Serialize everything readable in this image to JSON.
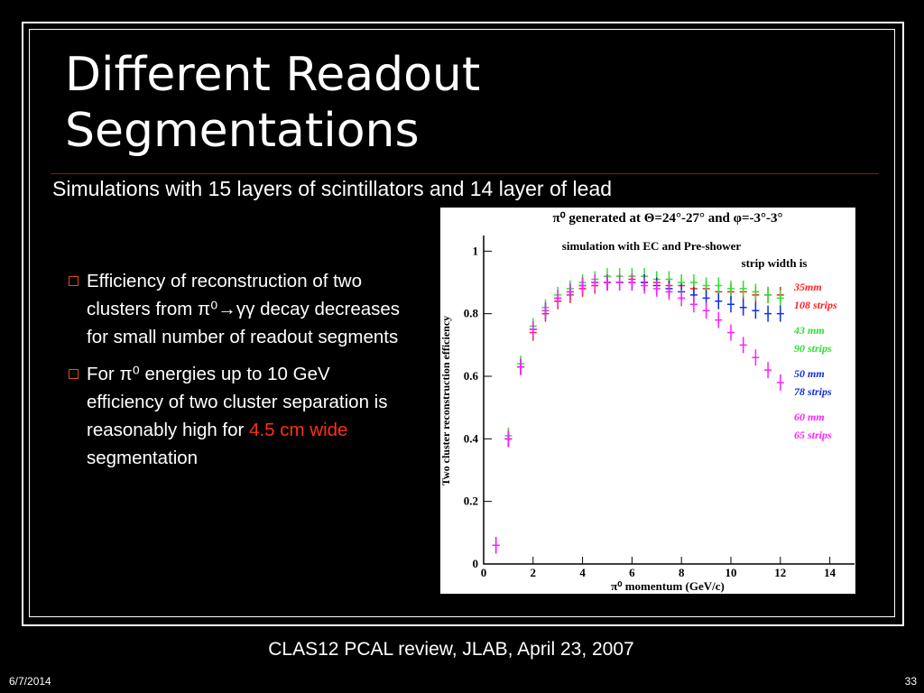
{
  "slide": {
    "title": [
      "Different Readout",
      "Segmentations"
    ],
    "subtitle": "Simulations with 15 layers of scintillators and 14 layer of lead",
    "bullets": [
      [
        "Efficiency of reconstruction of two clusters from π⁰→γγ decay decreases for small number of readout segments"
      ],
      [
        "For  π⁰ energies up to 10 GeV efficiency of two cluster separation is reasonably high for ",
        "4.5 cm wide",
        " segmentation"
      ]
    ],
    "footer": "CLAS12  PCAL review, JLAB, April 23, 2007",
    "date": "6/7/2014",
    "page": "33"
  },
  "chart_data": {
    "type": "scatter",
    "title": "π⁰ generated at Θ=24°-27° and φ=-3°-3°",
    "annotations": [
      "simulation with EC and Pre-shower",
      "strip width is"
    ],
    "xlabel": "π⁰ momentum (GeV/c)",
    "ylabel": "Two cluster reconstruction efficiency",
    "x": [
      0.5,
      1,
      1.5,
      2,
      2.5,
      3,
      3.5,
      4,
      4.5,
      5,
      5.5,
      6,
      6.5,
      7,
      7.5,
      8,
      8.5,
      9,
      9.5,
      10,
      10.5,
      11,
      11.5,
      12
    ],
    "series": [
      {
        "name": "35mm",
        "strips": "108 strips",
        "color": "#ff2020",
        "values": [
          0.06,
          0.4,
          0.63,
          0.74,
          0.8,
          0.84,
          0.86,
          0.88,
          0.89,
          0.9,
          0.9,
          0.91,
          0.9,
          0.9,
          0.89,
          0.89,
          0.88,
          0.88,
          0.87,
          0.87,
          0.87,
          0.86,
          0.86,
          0.86
        ]
      },
      {
        "name": "43 mm",
        "strips": "90 strips",
        "color": "#30e030",
        "values": [
          0.06,
          0.41,
          0.64,
          0.76,
          0.82,
          0.86,
          0.88,
          0.9,
          0.91,
          0.92,
          0.92,
          0.92,
          0.92,
          0.91,
          0.91,
          0.9,
          0.9,
          0.89,
          0.89,
          0.88,
          0.88,
          0.87,
          0.86,
          0.85
        ]
      },
      {
        "name": "50 mm",
        "strips": "78 strips",
        "color": "#1030e0",
        "values": [
          0.06,
          0.4,
          0.63,
          0.75,
          0.81,
          0.85,
          0.87,
          0.89,
          0.9,
          0.9,
          0.9,
          0.9,
          0.9,
          0.89,
          0.88,
          0.87,
          0.86,
          0.85,
          0.84,
          0.83,
          0.82,
          0.81,
          0.8,
          0.8
        ]
      },
      {
        "name": "60 mm",
        "strips": "65 strips",
        "color": "#ff20ff",
        "values": [
          0.06,
          0.4,
          0.63,
          0.75,
          0.81,
          0.85,
          0.87,
          0.89,
          0.9,
          0.9,
          0.9,
          0.9,
          0.89,
          0.88,
          0.87,
          0.85,
          0.83,
          0.81,
          0.78,
          0.74,
          0.7,
          0.66,
          0.62,
          0.58
        ]
      }
    ],
    "xlim": [
      0,
      15
    ],
    "xticks": [
      0,
      2,
      4,
      6,
      8,
      10,
      12,
      14
    ],
    "ylim": [
      0,
      1.05
    ],
    "yticks": [
      0,
      0.2,
      0.4,
      0.6,
      0.8,
      1
    ]
  }
}
